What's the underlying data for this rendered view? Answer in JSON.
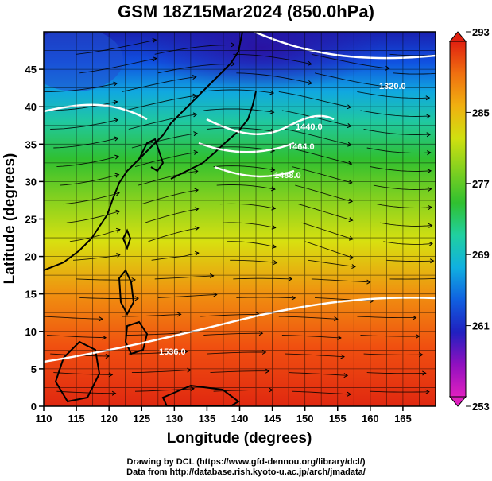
{
  "chart_data": {
    "type": "heatmap",
    "title": "GSM 18Z15Mar2024 (850.0hPa)",
    "xlabel": "Longitude (degrees)",
    "ylabel": "Latitude  (degrees)",
    "xlim": [
      110,
      170
    ],
    "ylim": [
      0,
      50
    ],
    "x_ticks": [
      110,
      115,
      120,
      125,
      130,
      135,
      140,
      145,
      150,
      155,
      160,
      165
    ],
    "y_ticks": [
      0,
      5,
      10,
      15,
      20,
      25,
      30,
      35,
      40,
      45
    ],
    "grid": true,
    "colorbar": {
      "position": "right",
      "min": 253,
      "max": 293,
      "ticks": [
        253,
        261,
        269,
        277,
        285,
        293
      ],
      "colors": [
        "#e020c0",
        "#9010c0",
        "#2020c0",
        "#1060e0",
        "#10b0e0",
        "#20d0a0",
        "#30c030",
        "#80d020",
        "#d0e010",
        "#f0b010",
        "#f07010",
        "#e02010"
      ]
    },
    "contour_labels": [
      "1320.0",
      "1440.0",
      "1464.0",
      "1488.0",
      "1536.0"
    ],
    "overlays": [
      "streamlines",
      "coastlines",
      "geopotential contours"
    ]
  },
  "credits": {
    "line1": "Drawing by DCL (https://www.gfd-dennou.org/library/dcl/)",
    "line2": "Data from http://database.rish.kyoto-u.ac.jp/arch/jmadata/"
  }
}
